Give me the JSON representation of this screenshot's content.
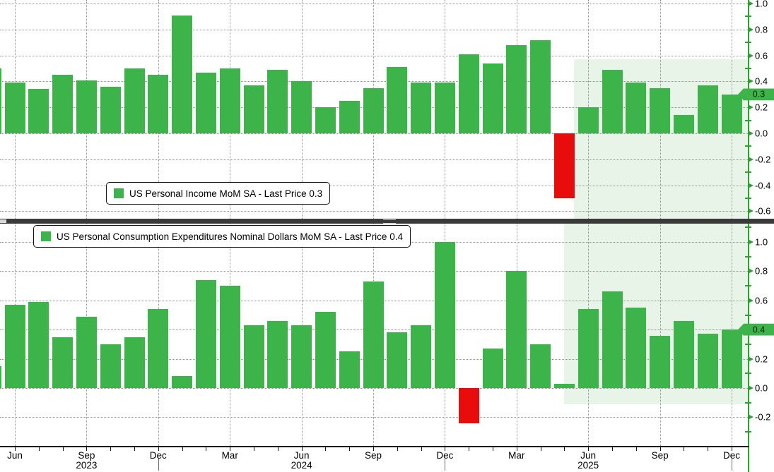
{
  "colors": {
    "bar_positive": "#3cb44a",
    "bar_negative": "#e80c0c",
    "highlight_region": "#e9f4e9",
    "axis_green": "#2f9e33",
    "grid_gray": "#8f8f8f",
    "x_axis_black": "#151515",
    "divider_dark": "#3a3a3a",
    "background": "#ffffff"
  },
  "x_axis": {
    "tick_labels": [
      "Jun",
      "Sep",
      "Dec",
      "Mar",
      "Jun",
      "Sep",
      "Dec",
      "Mar",
      "Jun",
      "Sep",
      "Dec"
    ],
    "year_labels": [
      "2023",
      "2024",
      "2025"
    ]
  },
  "chart_data": [
    {
      "type": "bar",
      "panel": "top",
      "legend": "US Personal Income MoM SA - Last Price 0.3",
      "series_name": "US Personal Income MoM SA",
      "last_price": 0.3,
      "last_price_label": "0.3",
      "ylim": [
        -0.66,
        1.03
      ],
      "grid": true,
      "legend_position": "inside-bottom-left",
      "y_ticks": [
        "1.0",
        "0.8",
        "0.6",
        "0.4",
        "0.2",
        "0.0",
        "-0.2",
        "-0.4",
        "-0.6"
      ],
      "highlight": {
        "from": "Jun 2025",
        "to": "Dec 2025"
      },
      "categories": [
        "May 2023",
        "Jun 2023",
        "Jul 2023",
        "Aug 2023",
        "Sep 2023",
        "Oct 2023",
        "Nov 2023",
        "Dec 2023",
        "Jan 2024",
        "Feb 2024",
        "Mar 2024",
        "Apr 2024",
        "May 2024",
        "Jun 2024",
        "Jul 2024",
        "Aug 2024",
        "Sep 2024",
        "Oct 2024",
        "Nov 2024",
        "Dec 2024",
        "Jan 2025",
        "Feb 2025",
        "Mar 2025",
        "Apr 2025",
        "May 2025",
        "Jun 2025",
        "Jul 2025",
        "Aug 2025",
        "Sep 2025",
        "Oct 2025",
        "Nov 2025",
        "Dec 2025"
      ],
      "values": [
        0.5,
        0.39,
        0.34,
        0.45,
        0.41,
        0.36,
        0.5,
        0.45,
        0.91,
        0.47,
        0.5,
        0.37,
        0.49,
        0.4,
        0.2,
        0.25,
        0.35,
        0.51,
        0.39,
        0.39,
        0.61,
        0.54,
        0.68,
        0.72,
        -0.5,
        0.2,
        0.49,
        0.39,
        0.35,
        0.14,
        0.37,
        0.3
      ]
    },
    {
      "type": "bar",
      "panel": "bottom",
      "legend": "US Personal Consumption Expenditures Nominal Dollars MoM SA - Last Price 0.4",
      "series_name": "US Personal Consumption Expenditures Nominal Dollars MoM SA",
      "last_price": 0.4,
      "last_price_label": "0.4",
      "ylim": [
        -0.4,
        1.12
      ],
      "grid": true,
      "legend_position": "inside-top-left",
      "y_ticks": [
        "1.0",
        "0.8",
        "0.6",
        "0.4",
        "0.2",
        "0.0",
        "-0.2"
      ],
      "highlight": {
        "from": "Jun 2025",
        "to": "Dec 2025"
      },
      "categories": [
        "May 2023",
        "Jun 2023",
        "Jul 2023",
        "Aug 2023",
        "Sep 2023",
        "Oct 2023",
        "Nov 2023",
        "Dec 2023",
        "Jan 2024",
        "Feb 2024",
        "Mar 2024",
        "Apr 2024",
        "May 2024",
        "Jun 2024",
        "Jul 2024",
        "Aug 2024",
        "Sep 2024",
        "Oct 2024",
        "Nov 2024",
        "Dec 2024",
        "Jan 2025",
        "Feb 2025",
        "Mar 2025",
        "Apr 2025",
        "May 2025",
        "Jun 2025",
        "Jul 2025",
        "Aug 2025",
        "Sep 2025",
        "Oct 2025",
        "Nov 2025",
        "Dec 2025"
      ],
      "values": [
        0.15,
        0.57,
        0.59,
        0.35,
        0.49,
        0.3,
        0.35,
        0.54,
        0.08,
        0.74,
        0.7,
        0.43,
        0.46,
        0.43,
        0.52,
        0.25,
        0.73,
        0.38,
        0.43,
        1.0,
        -0.24,
        0.27,
        0.8,
        0.3,
        0.03,
        0.54,
        0.66,
        0.55,
        0.36,
        0.46,
        0.37,
        0.4
      ]
    }
  ]
}
